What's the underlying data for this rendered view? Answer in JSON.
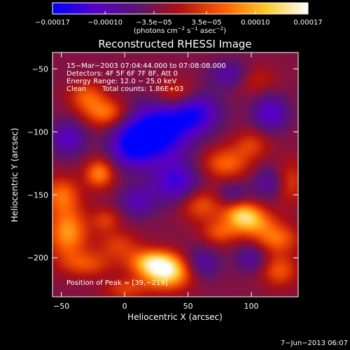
{
  "chart_data": {
    "type": "heatmap",
    "title": "Reconstructed RHESSI Image",
    "xlabel": "Heliocentric X (arcsec)",
    "ylabel": "Heliocentric Y (arcsec)",
    "xlim": [
      -57,
      137
    ],
    "ylim": [
      -231,
      -37
    ],
    "x_ticks": [
      -50,
      0,
      50,
      100
    ],
    "x_tick_labels": [
      "−50",
      "0",
      "50",
      "100"
    ],
    "y_ticks": [
      -50,
      -100,
      -150,
      -200
    ],
    "y_tick_labels": [
      "−50",
      "−100",
      "−150",
      "−200"
    ],
    "colorbar": {
      "range": [
        -0.00017,
        0.00017
      ],
      "ticks": [
        -0.00017,
        -0.0001,
        -3.5e-05,
        3.5e-05,
        0.0001,
        0.00017
      ],
      "tick_labels": [
        "−0.00017",
        "−0.00010",
        "−3.5e−05",
        "3.5e−05",
        "0.00010",
        "0.00017"
      ],
      "unit_text": "(photons cm",
      "unit_sup1": "−2",
      "unit_mid": " s",
      "unit_sup2": "−1",
      "unit_mid2": " asec",
      "unit_sup3": "−2",
      "unit_end": ")",
      "colors": [
        "#0000ff",
        "#5800c8",
        "#5a1470",
        "#b01010",
        "#ff5a00",
        "#ffc828",
        "#ffffff"
      ]
    },
    "annotations": {
      "line1": "15−Mar−2003 07:04:44.000 to 07:08:08.000",
      "line2": "Detectors: 4F 5F 6F 7F 8F, Att 0",
      "line3": "Energy Range: 12.0 − 25.0 keV",
      "line4a": "Clean",
      "line4b": "Total counts: 1.86E+03",
      "peak": "Position of Peak = [39,−219]"
    },
    "timestamp": "7−Jun−2013 06:07",
    "peak_position": [
      39,
      -219
    ],
    "background_level": -3e-05,
    "sources": [
      {
        "x": 33,
        "y": -212,
        "amp": 0.00017,
        "sx": 14,
        "sy": 9
      },
      {
        "x": 22,
        "y": -203,
        "amp": 0.00012,
        "sx": 13,
        "sy": 7
      },
      {
        "x": 100,
        "y": -172,
        "amp": 0.00011,
        "sx": 13,
        "sy": 8
      },
      {
        "x": 92,
        "y": -164,
        "amp": 0.0001,
        "sx": 10,
        "sy": 7
      },
      {
        "x": 120,
        "y": -185,
        "amp": 9e-05,
        "sx": 12,
        "sy": 8
      },
      {
        "x": 60,
        "y": -158,
        "amp": 8e-05,
        "sx": 12,
        "sy": 9
      },
      {
        "x": 75,
        "y": -180,
        "amp": 7e-05,
        "sx": 10,
        "sy": 7
      },
      {
        "x": 80,
        "y": -125,
        "amp": 9e-05,
        "sx": 13,
        "sy": 9
      },
      {
        "x": 100,
        "y": -110,
        "amp": 6e-05,
        "sx": 10,
        "sy": 8
      },
      {
        "x": 122,
        "y": -210,
        "amp": 8e-05,
        "sx": 10,
        "sy": 9
      },
      {
        "x": -15,
        "y": -85,
        "amp": 0.0001,
        "sx": 12,
        "sy": 8
      },
      {
        "x": -30,
        "y": -72,
        "amp": 8e-05,
        "sx": 10,
        "sy": 8
      },
      {
        "x": -20,
        "y": -133,
        "amp": 0.00011,
        "sx": 8,
        "sy": 8
      },
      {
        "x": -50,
        "y": -150,
        "amp": 9e-05,
        "sx": 10,
        "sy": 10
      },
      {
        "x": -45,
        "y": -180,
        "amp": 0.00012,
        "sx": 11,
        "sy": 14
      },
      {
        "x": -15,
        "y": -170,
        "amp": 6e-05,
        "sx": 8,
        "sy": 7
      },
      {
        "x": -30,
        "y": -205,
        "amp": 7e-05,
        "sx": 14,
        "sy": 7
      },
      {
        "x": -5,
        "y": -190,
        "amp": 6e-05,
        "sx": 12,
        "sy": 8
      },
      {
        "x": 0,
        "y": -225,
        "amp": 6e-05,
        "sx": 12,
        "sy": 6
      },
      {
        "x": 40,
        "y": -70,
        "amp": 7e-05,
        "sx": 11,
        "sy": 8
      },
      {
        "x": 100,
        "y": -58,
        "amp": 6e-05,
        "sx": 12,
        "sy": 8
      },
      {
        "x": 130,
        "y": -140,
        "amp": 7e-05,
        "sx": 8,
        "sy": 12
      },
      {
        "x": 25,
        "y": -100,
        "amp": -0.00016,
        "sx": 18,
        "sy": 15
      },
      {
        "x": 5,
        "y": -112,
        "amp": -0.0001,
        "sx": 12,
        "sy": 12
      },
      {
        "x": 55,
        "y": -85,
        "amp": -0.00011,
        "sx": 14,
        "sy": 11
      },
      {
        "x": 85,
        "y": -55,
        "amp": -8e-05,
        "sx": 12,
        "sy": 8
      },
      {
        "x": 115,
        "y": -85,
        "amp": -9e-05,
        "sx": 10,
        "sy": 10
      },
      {
        "x": 40,
        "y": -140,
        "amp": -0.0001,
        "sx": 13,
        "sy": 12
      },
      {
        "x": -45,
        "y": -105,
        "amp": -8e-05,
        "sx": 10,
        "sy": 10
      },
      {
        "x": 10,
        "y": -155,
        "amp": -7e-05,
        "sx": 10,
        "sy": 9
      },
      {
        "x": 60,
        "y": -205,
        "amp": -7e-05,
        "sx": 10,
        "sy": 9
      },
      {
        "x": 115,
        "y": -140,
        "amp": -6e-05,
        "sx": 10,
        "sy": 9
      },
      {
        "x": 100,
        "y": -200,
        "amp": -6e-05,
        "sx": 9,
        "sy": 8
      },
      {
        "x": 85,
        "y": -150,
        "amp": -5e-05,
        "sx": 9,
        "sy": 8
      }
    ]
  }
}
